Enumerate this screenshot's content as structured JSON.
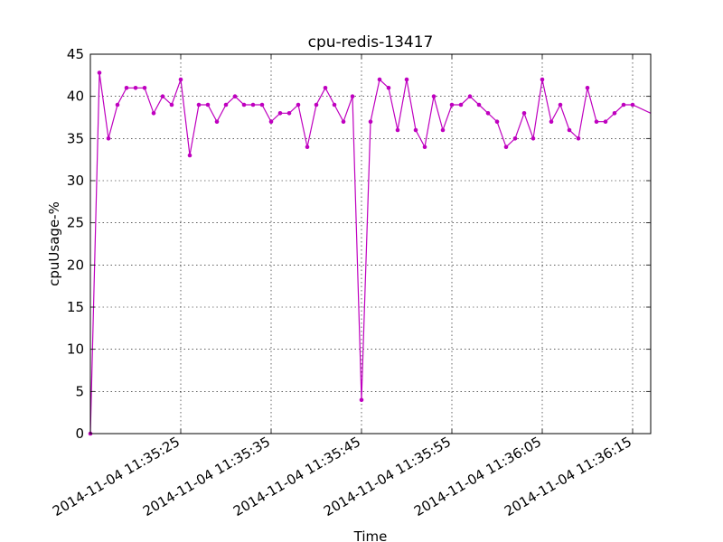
{
  "chart_data": {
    "type": "line",
    "title": "cpu-redis-13417",
    "xlabel": "Time",
    "ylabel": "cpuUsage-%",
    "ylim": [
      0,
      45
    ],
    "yticks": [
      0,
      5,
      10,
      15,
      20,
      25,
      30,
      35,
      40,
      45
    ],
    "xlim": [
      "2014-11-04 11:35:15",
      "2014-11-04 11:36:17"
    ],
    "xticks": [
      "2014-11-04 11:35:25",
      "2014-11-04 11:35:35",
      "2014-11-04 11:35:45",
      "2014-11-04 11:35:55",
      "2014-11-04 11:36:05",
      "2014-11-04 11:36:15"
    ],
    "grid": true,
    "color": "#bf00bf",
    "x": [
      "2014-11-04 11:35:15",
      "2014-11-04 11:35:16",
      "2014-11-04 11:35:17",
      "2014-11-04 11:35:18",
      "2014-11-04 11:35:19",
      "2014-11-04 11:35:20",
      "2014-11-04 11:35:21",
      "2014-11-04 11:35:22",
      "2014-11-04 11:35:23",
      "2014-11-04 11:35:24",
      "2014-11-04 11:35:25",
      "2014-11-04 11:35:26",
      "2014-11-04 11:35:27",
      "2014-11-04 11:35:28",
      "2014-11-04 11:35:29",
      "2014-11-04 11:35:30",
      "2014-11-04 11:35:31",
      "2014-11-04 11:35:32",
      "2014-11-04 11:35:33",
      "2014-11-04 11:35:34",
      "2014-11-04 11:35:35",
      "2014-11-04 11:35:36",
      "2014-11-04 11:35:37",
      "2014-11-04 11:35:38",
      "2014-11-04 11:35:39",
      "2014-11-04 11:35:40",
      "2014-11-04 11:35:41",
      "2014-11-04 11:35:42",
      "2014-11-04 11:35:43",
      "2014-11-04 11:35:44",
      "2014-11-04 11:35:45",
      "2014-11-04 11:35:46",
      "2014-11-04 11:35:47",
      "2014-11-04 11:35:48",
      "2014-11-04 11:35:49",
      "2014-11-04 11:35:50",
      "2014-11-04 11:35:51",
      "2014-11-04 11:35:52",
      "2014-11-04 11:35:53",
      "2014-11-04 11:35:54",
      "2014-11-04 11:35:55",
      "2014-11-04 11:35:56",
      "2014-11-04 11:35:57",
      "2014-11-04 11:35:58",
      "2014-11-04 11:35:59",
      "2014-11-04 11:36:00",
      "2014-11-04 11:36:01",
      "2014-11-04 11:36:02",
      "2014-11-04 11:36:03",
      "2014-11-04 11:36:04",
      "2014-11-04 11:36:05",
      "2014-11-04 11:36:06",
      "2014-11-04 11:36:07",
      "2014-11-04 11:36:08",
      "2014-11-04 11:36:09",
      "2014-11-04 11:36:10",
      "2014-11-04 11:36:11",
      "2014-11-04 11:36:12",
      "2014-11-04 11:36:13",
      "2014-11-04 11:36:14",
      "2014-11-04 11:36:15"
    ],
    "values": [
      0,
      42.8,
      35,
      39,
      41,
      41,
      41,
      38,
      40,
      39,
      42,
      33,
      39,
      39,
      37,
      39,
      40,
      39,
      39,
      39,
      37,
      38,
      38,
      39,
      34,
      39,
      41,
      39,
      37,
      40,
      4,
      37,
      42,
      41,
      36,
      42,
      36,
      34,
      40,
      36,
      39,
      39,
      40,
      39,
      38,
      37,
      34,
      35,
      38,
      35,
      42,
      37,
      39,
      36,
      35,
      41,
      37,
      37,
      38,
      39,
      39
    ],
    "line_end": {
      "x": "2014-11-04 11:36:17",
      "value": 38
    }
  }
}
